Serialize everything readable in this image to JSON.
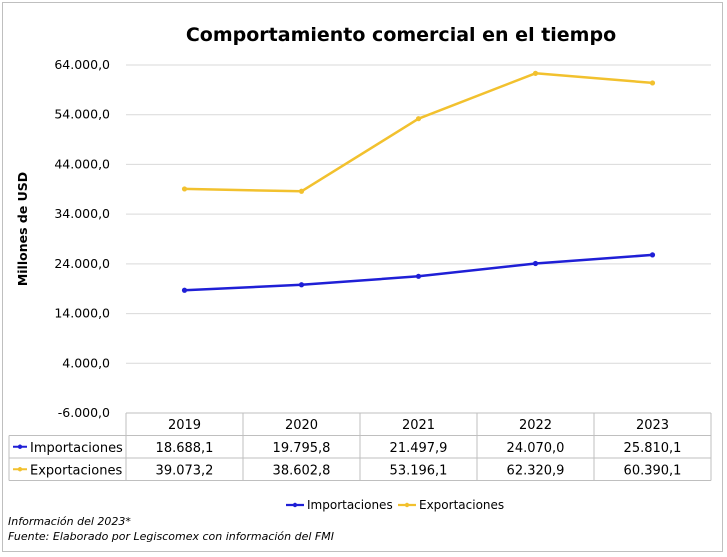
{
  "chart_data": {
    "type": "line",
    "title": "Comportamiento comercial en el tiempo",
    "xlabel": "",
    "ylabel": "Millones de USD",
    "ylim": [
      -6000,
      64000
    ],
    "yticks": [
      "64.000,0",
      "54.000,0",
      "44.000,0",
      "34.000,0",
      "24.000,0",
      "14.000,0",
      "4.000,0",
      "-6.000,0"
    ],
    "ytick_values": [
      64000,
      54000,
      44000,
      34000,
      24000,
      14000,
      4000,
      -6000
    ],
    "categories": [
      "2019",
      "2020",
      "2021",
      "2022",
      "2023"
    ],
    "series": [
      {
        "name": "Importaciones",
        "color": "#1f1fd6",
        "values": [
          18688.1,
          19795.8,
          21497.9,
          24070.0,
          25810.1
        ],
        "labels": [
          "18.688,1",
          "19.795,8",
          "21.497,9",
          "24.070,0",
          "25.810,1"
        ]
      },
      {
        "name": "Exportaciones",
        "color": "#f2c12e",
        "values": [
          39073.2,
          38602.8,
          53196.1,
          62320.9,
          60390.1
        ],
        "labels": [
          "39.073,2",
          "38.602,8",
          "53.196,1",
          "62.320,9",
          "60.390,1"
        ]
      }
    ],
    "grid": true,
    "legend": "bottom",
    "data_table": true
  },
  "notes": {
    "info": "Información del 2023*",
    "source": "Fuente: Elaborado por Legiscomex con información del FMI"
  }
}
